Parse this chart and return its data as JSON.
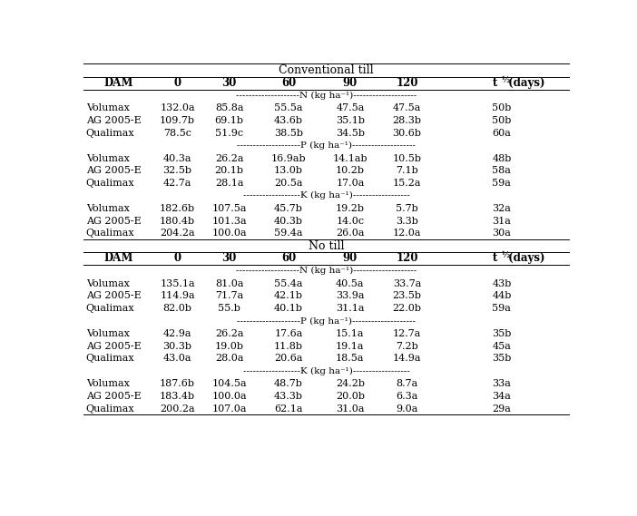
{
  "title1": "Conventional till",
  "title2": "No till",
  "col_headers": [
    "DAM",
    "0",
    "30",
    "60",
    "90",
    "120",
    "t ½ (days)"
  ],
  "conv_data": {
    "N": [
      [
        "Volumax",
        "132.0a",
        "85.8a",
        "55.5a",
        "47.5a",
        "47.5a",
        "50b"
      ],
      [
        "AG 2005-E",
        "109.7b",
        "69.1b",
        "43.6b",
        "35.1b",
        "28.3b",
        "50b"
      ],
      [
        "Qualimax",
        "78.5c",
        "51.9c",
        "38.5b",
        "34.5b",
        "30.6b",
        "60a"
      ]
    ],
    "P": [
      [
        "Volumax",
        "40.3a",
        "26.2a",
        "16.9ab",
        "14.1ab",
        "10.5b",
        "48b"
      ],
      [
        "AG 2005-E",
        "32.5b",
        "20.1b",
        "13.0b",
        "10.2b",
        "7.1b",
        "58a"
      ],
      [
        "Qualimax",
        "42.7a",
        "28.1a",
        "20.5a",
        "17.0a",
        "15.2a",
        "59a"
      ]
    ],
    "K": [
      [
        "Volumax",
        "182.6b",
        "107.5a",
        "45.7b",
        "19.2b",
        "5.7b",
        "32a"
      ],
      [
        "AG 2005-E",
        "180.4b",
        "101.3a",
        "40.3b",
        "14.0c",
        "3.3b",
        "31a"
      ],
      [
        "Qualimax",
        "204.2a",
        "100.0a",
        "59.4a",
        "26.0a",
        "12.0a",
        "30a"
      ]
    ]
  },
  "notill_data": {
    "N": [
      [
        "Volumax",
        "135.1a",
        "81.0a",
        "55.4a",
        "40.5a",
        "33.7a",
        "43b"
      ],
      [
        "AG 2005-E",
        "114.9a",
        "71.7a",
        "42.1b",
        "33.9a",
        "23.5b",
        "44b"
      ],
      [
        "Qualimax",
        "82.0b",
        "55.b",
        "40.1b",
        "31.1a",
        "22.0b",
        "59a"
      ]
    ],
    "P": [
      [
        "Volumax",
        "42.9a",
        "26.2a",
        "17.6a",
        "15.1a",
        "12.7a",
        "35b"
      ],
      [
        "AG 2005-E",
        "30.3b",
        "19.0b",
        "11.8b",
        "19.1a",
        "7.2b",
        "45a"
      ],
      [
        "Qualimax",
        "43.0a",
        "28.0a",
        "20.6a",
        "18.5a",
        "14.9a",
        "35b"
      ]
    ],
    "K": [
      [
        "Volumax",
        "187.6b",
        "104.5a",
        "48.7b",
        "24.2b",
        "8.7a",
        "33a"
      ],
      [
        "AG 2005-E",
        "183.4b",
        "100.0a",
        "43.3b",
        "20.0b",
        "6.3a",
        "34a"
      ],
      [
        "Qualimax",
        "200.2a",
        "107.0a",
        "62.1a",
        "31.0a",
        "9.0a",
        "29a"
      ]
    ]
  },
  "n_label": "N (kg ha⁻¹)",
  "p_label": "P (kg ha⁻¹)",
  "k_label": "K (kg ha⁻¹)",
  "bg_color": "#ffffff",
  "text_color": "#000000",
  "font_size": 8.0,
  "header_font_size": 8.5,
  "title_font_size": 9.0
}
